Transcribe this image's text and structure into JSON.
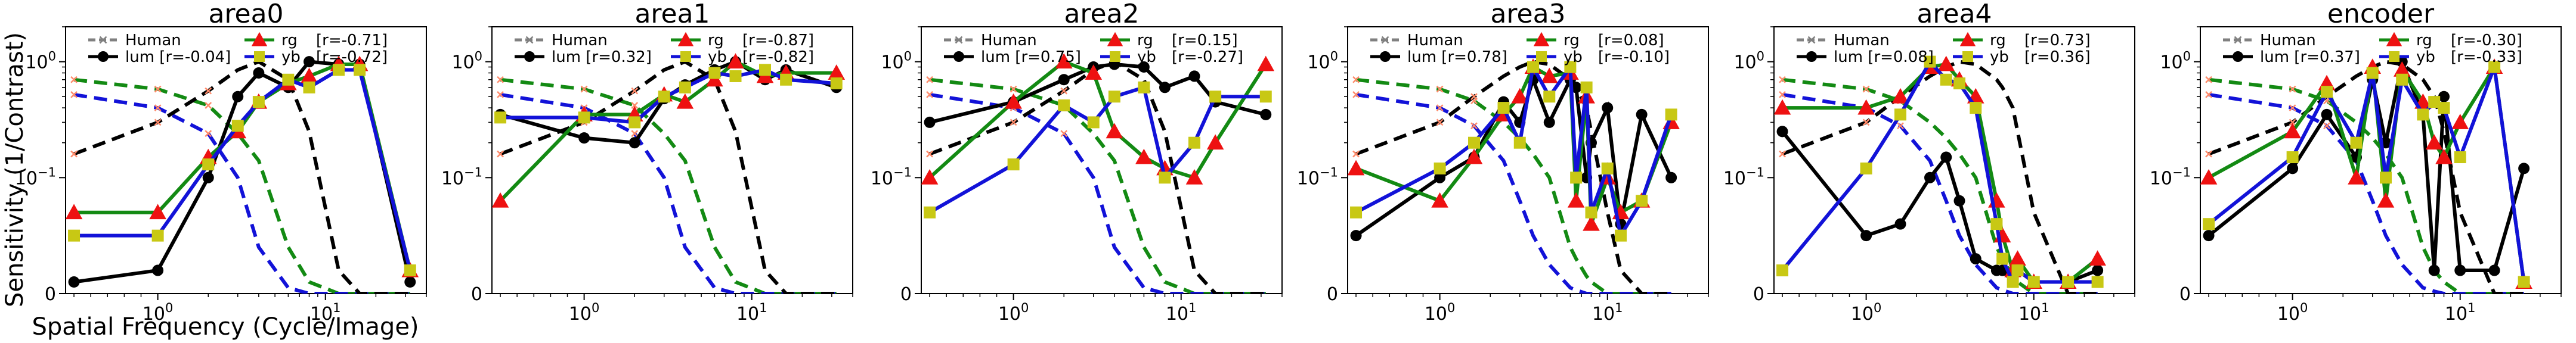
{
  "figure": {
    "ylabel": "Sensitivity (1/Contrast)",
    "xlabel": "Spatial Frequency (Cycle/Image)"
  },
  "colors": {
    "human": "#808080",
    "lum": "#000000",
    "rg": "#138a13",
    "yb": "#1212d8",
    "human_marker": "#ff8a6a",
    "rg_marker": "#ee1111",
    "yb_marker": "#c8c814"
  },
  "legend_labels": {
    "human": "Human",
    "lum": "lum",
    "rg": "rg",
    "yb": "yb"
  },
  "chart_data": [
    {
      "type": "line",
      "title": "area0",
      "xscale": "symlog",
      "yscale": "symlog",
      "xlim": [
        0.45,
        40
      ],
      "ylim": [
        0,
        2
      ],
      "x_ticks": [
        "10^0",
        "10^1"
      ],
      "y_ticks": [
        "0",
        "10^-1",
        "10^0"
      ],
      "legend_placement": "top",
      "x": [
        0.5,
        1,
        2,
        3,
        4,
        6,
        8,
        12,
        16,
        32
      ],
      "human_curves": {
        "lum": [
          0.16,
          0.3,
          0.56,
          0.85,
          1.0,
          0.7,
          0.25,
          0.02,
          0.0,
          0.0
        ],
        "rg": [
          0.7,
          0.58,
          0.42,
          0.24,
          0.14,
          0.04,
          0.01,
          0.0,
          0.0,
          0.0
        ],
        "yb": [
          0.52,
          0.4,
          0.24,
          0.1,
          0.04,
          0.005,
          0.0,
          0.0,
          0.0,
          0.0
        ]
      },
      "series": [
        {
          "name": "lum",
          "r": "[r=-0.04]",
          "values": [
            0.01,
            0.02,
            0.1,
            0.5,
            0.8,
            0.6,
            1.0,
            0.95,
            0.95,
            0.01
          ]
        },
        {
          "name": "rg",
          "r": "[r=-0.71]",
          "values": [
            0.07,
            0.07,
            0.15,
            0.25,
            0.45,
            0.65,
            0.75,
            0.95,
            0.95,
            0.02
          ]
        },
        {
          "name": "yb",
          "r": "[r=-0.72]",
          "values": [
            0.05,
            0.05,
            0.13,
            0.28,
            0.45,
            0.7,
            0.6,
            0.85,
            0.85,
            0.02
          ]
        }
      ]
    },
    {
      "type": "line",
      "title": "area1",
      "xscale": "symlog",
      "yscale": "symlog",
      "xlim": [
        0.45,
        40
      ],
      "ylim": [
        0,
        2
      ],
      "x_ticks": [
        "10^0",
        "10^1"
      ],
      "y_ticks": [
        "0",
        "10^-1",
        "10^0"
      ],
      "legend_placement": "top",
      "x": [
        0.5,
        1,
        2,
        3,
        4,
        6,
        8,
        12,
        16,
        32
      ],
      "human_curves": {
        "lum": [
          0.16,
          0.3,
          0.56,
          0.85,
          1.0,
          0.7,
          0.25,
          0.02,
          0.0,
          0.0
        ],
        "rg": [
          0.7,
          0.58,
          0.42,
          0.24,
          0.14,
          0.04,
          0.01,
          0.0,
          0.0,
          0.0
        ],
        "yb": [
          0.52,
          0.4,
          0.24,
          0.1,
          0.04,
          0.005,
          0.0,
          0.0,
          0.0,
          0.0
        ]
      },
      "series": [
        {
          "name": "lum",
          "r": "[r=0.32]",
          "values": [
            0.35,
            0.22,
            0.2,
            0.48,
            0.63,
            0.85,
            1.0,
            0.7,
            0.85,
            0.6
          ]
        },
        {
          "name": "rg",
          "r": "[r=-0.87]",
          "values": [
            0.08,
            0.35,
            0.35,
            0.52,
            0.45,
            0.7,
            1.0,
            0.75,
            0.8,
            0.8
          ]
        },
        {
          "name": "yb",
          "r": "[r=-0.82]",
          "values": [
            0.33,
            0.33,
            0.3,
            0.5,
            0.6,
            0.8,
            0.75,
            0.85,
            0.7,
            0.65
          ]
        }
      ]
    },
    {
      "type": "line",
      "title": "area2",
      "xscale": "symlog",
      "yscale": "symlog",
      "xlim": [
        0.45,
        40
      ],
      "ylim": [
        0,
        2
      ],
      "x_ticks": [
        "10^0",
        "10^1"
      ],
      "y_ticks": [
        "0",
        "10^-1",
        "10^0"
      ],
      "legend_placement": "top",
      "x": [
        0.5,
        1,
        2,
        3,
        4,
        6,
        8,
        12,
        16,
        32
      ],
      "human_curves": {
        "lum": [
          0.16,
          0.3,
          0.56,
          0.85,
          1.0,
          0.7,
          0.25,
          0.02,
          0.0,
          0.0
        ],
        "rg": [
          0.7,
          0.58,
          0.42,
          0.24,
          0.14,
          0.04,
          0.01,
          0.0,
          0.0,
          0.0
        ],
        "yb": [
          0.52,
          0.4,
          0.24,
          0.1,
          0.04,
          0.005,
          0.0,
          0.0,
          0.0,
          0.0
        ]
      },
      "series": [
        {
          "name": "lum",
          "r": "[r=0.75]",
          "values": [
            0.3,
            0.45,
            0.7,
            0.9,
            0.95,
            0.9,
            0.6,
            0.75,
            0.45,
            0.35
          ]
        },
        {
          "name": "rg",
          "r": "[r=0.15]",
          "values": [
            0.1,
            0.45,
            1.0,
            0.8,
            0.25,
            0.15,
            0.12,
            0.1,
            0.2,
            0.95
          ]
        },
        {
          "name": "yb",
          "r": "[r=-0.27]",
          "values": [
            0.07,
            0.13,
            0.42,
            0.3,
            0.5,
            0.6,
            0.1,
            0.2,
            0.5,
            0.5
          ]
        }
      ]
    },
    {
      "type": "line",
      "title": "area3",
      "xscale": "symlog",
      "yscale": "symlog",
      "xlim": [
        0.45,
        40
      ],
      "ylim": [
        0,
        2
      ],
      "x_ticks": [
        "10^0",
        "10^1"
      ],
      "y_ticks": [
        "0",
        "10^-1",
        "10^0"
      ],
      "legend_placement": "top",
      "x": [
        0.5,
        1,
        1.6,
        2.4,
        3,
        3.6,
        4.5,
        6,
        6.5,
        7.5,
        8,
        10,
        12,
        16,
        24
      ],
      "human_curves": {
        "lum": [
          0.16,
          0.3,
          0.5,
          0.75,
          0.9,
          1.0,
          0.95,
          0.7,
          0.6,
          0.4,
          0.25,
          0.07,
          0.02,
          0.0,
          0.0
        ],
        "rg": [
          0.7,
          0.58,
          0.46,
          0.3,
          0.22,
          0.16,
          0.1,
          0.04,
          0.03,
          0.015,
          0.01,
          0.0,
          0.0,
          0.0,
          0.0
        ],
        "yb": [
          0.52,
          0.4,
          0.28,
          0.14,
          0.08,
          0.05,
          0.025,
          0.005,
          0.003,
          0.0,
          0.0,
          0.0,
          0.0,
          0.0,
          0.0
        ]
      },
      "series": [
        {
          "name": "lum",
          "r": "[r=0.78]",
          "values": [
            0.05,
            0.1,
            0.15,
            0.45,
            0.3,
            0.7,
            0.3,
            0.7,
            0.6,
            0.1,
            0.2,
            0.4,
            0.06,
            0.35,
            0.1
          ]
        },
        {
          "name": "rg",
          "r": "[r=0.08]",
          "values": [
            0.12,
            0.08,
            0.15,
            0.35,
            0.5,
            0.9,
            0.75,
            0.8,
            0.08,
            0.5,
            0.06,
            0.1,
            0.07,
            0.08,
            0.3
          ]
        },
        {
          "name": "yb",
          "r": "[r=-0.10]",
          "values": [
            0.07,
            0.12,
            0.2,
            0.4,
            0.2,
            0.9,
            0.5,
            0.9,
            0.1,
            0.6,
            0.07,
            0.12,
            0.05,
            0.08,
            0.35
          ]
        }
      ]
    },
    {
      "type": "line",
      "title": "area4",
      "xscale": "symlog",
      "yscale": "symlog",
      "xlim": [
        0.45,
        40
      ],
      "ylim": [
        0,
        2
      ],
      "x_ticks": [
        "10^0",
        "10^1"
      ],
      "y_ticks": [
        "0",
        "10^-1",
        "10^0"
      ],
      "legend_placement": "top",
      "x": [
        0.5,
        1,
        1.6,
        2.4,
        3,
        3.6,
        4.5,
        6,
        6.5,
        7.5,
        8,
        10,
        16,
        24
      ],
      "human_curves": {
        "lum": [
          0.16,
          0.3,
          0.5,
          0.75,
          0.9,
          1.0,
          0.95,
          0.7,
          0.6,
          0.4,
          0.25,
          0.07,
          0.0,
          0.0
        ],
        "rg": [
          0.7,
          0.58,
          0.46,
          0.3,
          0.22,
          0.16,
          0.1,
          0.04,
          0.03,
          0.015,
          0.01,
          0.0,
          0.0,
          0.0
        ],
        "yb": [
          0.52,
          0.4,
          0.28,
          0.14,
          0.08,
          0.05,
          0.025,
          0.005,
          0.003,
          0.0,
          0.0,
          0.0,
          0.0,
          0.0
        ]
      },
      "series": [
        {
          "name": "lum",
          "r": "[r=0.08]",
          "values": [
            0.25,
            0.05,
            0.06,
            0.1,
            0.15,
            0.08,
            0.03,
            0.02,
            0.02,
            0.01,
            0.02,
            0.01,
            0.01,
            0.02
          ]
        },
        {
          "name": "rg",
          "r": "[r=0.73]",
          "values": [
            0.4,
            0.4,
            0.5,
            0.9,
            0.95,
            0.7,
            0.5,
            0.08,
            0.05,
            0.02,
            0.03,
            0.01,
            0.01,
            0.03
          ]
        },
        {
          "name": "yb",
          "r": "[r=0.36]",
          "values": [
            0.02,
            0.12,
            0.35,
            1.0,
            0.7,
            0.65,
            0.4,
            0.06,
            0.03,
            0.01,
            0.02,
            0.01,
            0.01,
            0.01
          ]
        }
      ]
    },
    {
      "type": "line",
      "title": "encoder",
      "xscale": "symlog",
      "yscale": "symlog",
      "xlim": [
        0.45,
        40
      ],
      "ylim": [
        0,
        2
      ],
      "x_ticks": [
        "10^0",
        "10^1"
      ],
      "y_ticks": [
        "0",
        "10^-1",
        "10^0"
      ],
      "legend_placement": "top",
      "x": [
        0.5,
        1,
        1.6,
        2.4,
        3,
        3.6,
        4.5,
        6,
        7,
        8,
        10,
        16,
        24
      ],
      "human_curves": {
        "lum": [
          0.16,
          0.3,
          0.5,
          0.75,
          0.9,
          1.0,
          0.95,
          0.7,
          0.5,
          0.25,
          0.07,
          0.0,
          0.0
        ],
        "rg": [
          0.7,
          0.58,
          0.46,
          0.3,
          0.22,
          0.16,
          0.1,
          0.04,
          0.02,
          0.01,
          0.0,
          0.0,
          0.0
        ],
        "yb": [
          0.52,
          0.4,
          0.28,
          0.14,
          0.08,
          0.05,
          0.025,
          0.005,
          0.002,
          0.0,
          0.0,
          0.0,
          0.0
        ]
      },
      "series": [
        {
          "name": "lum",
          "r": "[r=0.37]",
          "values": [
            0.05,
            0.12,
            0.35,
            0.15,
            0.7,
            0.2,
            1.0,
            0.35,
            0.02,
            0.5,
            0.02,
            0.02,
            0.12
          ]
        },
        {
          "name": "rg",
          "r": "[r=-0.30]",
          "values": [
            0.1,
            0.25,
            0.65,
            0.1,
            0.9,
            0.08,
            0.85,
            0.45,
            0.2,
            0.15,
            0.3,
            0.9,
            0.01
          ]
        },
        {
          "name": "yb",
          "r": "[r=-0.33]",
          "values": [
            0.06,
            0.15,
            0.55,
            0.2,
            0.8,
            0.1,
            0.7,
            0.35,
            0.45,
            0.4,
            0.15,
            0.9,
            0.01
          ]
        }
      ]
    }
  ]
}
